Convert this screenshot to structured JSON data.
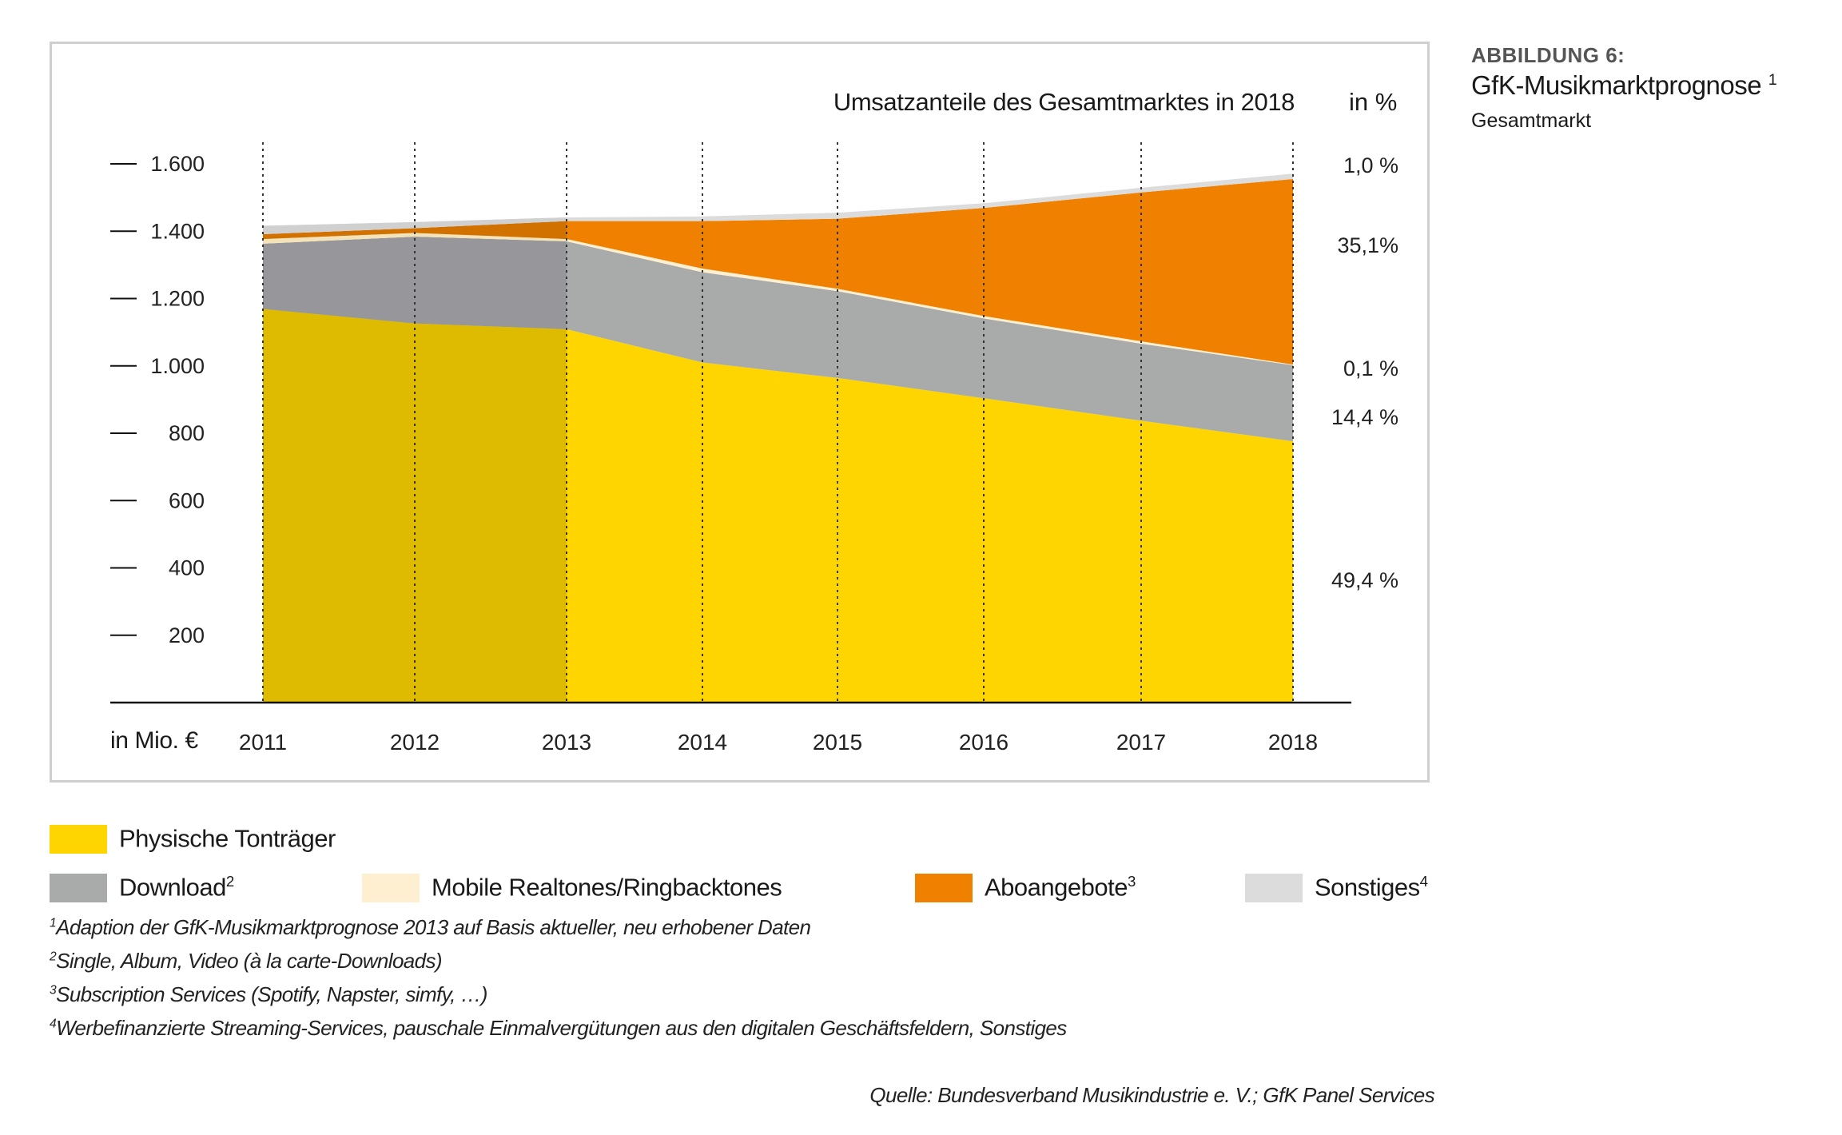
{
  "heading": {
    "label": "ABBILDUNG 6:",
    "title": "GfK-Musikmarktprognose",
    "title_sup": "1",
    "subtitle": "Gesamtmarkt"
  },
  "chart_data": {
    "type": "area",
    "stacked": true,
    "header_left": "Umsatzanteile des Gesamtmarktes in 2018",
    "header_right": "in %",
    "ylabel": "in Mio. €",
    "ylim": [
      0,
      1600
    ],
    "yticks": [
      200,
      400,
      600,
      800,
      1000,
      1200,
      1400,
      1600
    ],
    "ytick_labels": [
      "200",
      "400",
      "600",
      "800",
      "1.000",
      "1.200",
      "1.400",
      "1.600"
    ],
    "categories": [
      "2011",
      "2012",
      "2013",
      "2014",
      "2015",
      "2016",
      "2017",
      "2018"
    ],
    "actual_through": "2013",
    "grid": "vertical dotted lines at each year",
    "series": [
      {
        "name": "Physische Tonträger",
        "sup": "",
        "color": "#ffd500",
        "color_actual": "#dfbb00",
        "values": [
          1169,
          1126,
          1109,
          1010,
          964,
          904,
          837,
          776
        ],
        "share_2018": "49,4 %"
      },
      {
        "name": "Download",
        "sup": "2",
        "color": "#a9abab",
        "color_actual": "#97979b",
        "values": [
          194,
          258,
          261,
          268,
          258,
          237,
          229,
          226
        ],
        "share_2018": "14,4 %"
      },
      {
        "name": "Mobile Realtones/Ringbacktones",
        "sup": "",
        "color": "#fdefcf",
        "color_actual": "#f4e2b8",
        "values": [
          14,
          11,
          7,
          11,
          7,
          7,
          7,
          2
        ],
        "share_2018": "0,1 %"
      },
      {
        "name": "Aboangebote",
        "sup": "3",
        "color": "#ef8000",
        "color_actual": "#d17200",
        "values": [
          14,
          14,
          53,
          141,
          208,
          321,
          442,
          551
        ],
        "share_2018": "35,1%"
      },
      {
        "name": "Sonstiges",
        "sup": "4",
        "color": "#dcdcdc",
        "color_actual": "#d0d0d0",
        "values": [
          25,
          18,
          11,
          14,
          18,
          14,
          14,
          16
        ],
        "share_2018": "1,0 %"
      }
    ]
  },
  "footnotes": [
    {
      "num": "1",
      "text": "Adaption der GfK-Musikmarktprognose 2013 auf Basis aktueller, neu erhobener Daten"
    },
    {
      "num": "2",
      "text": "Single, Album, Video (à la carte-Downloads)"
    },
    {
      "num": "3",
      "text": "Subscription Services (Spotify, Napster, simfy, …)"
    },
    {
      "num": "4",
      "text": "Werbefinanzierte Streaming-Services, pauschale Einmalvergütungen aus den digitalen Geschäftsfeldern, Sonstiges"
    }
  ],
  "source": "Quelle: Bundesverband Musikindustrie e. V.; GfK Panel Services"
}
